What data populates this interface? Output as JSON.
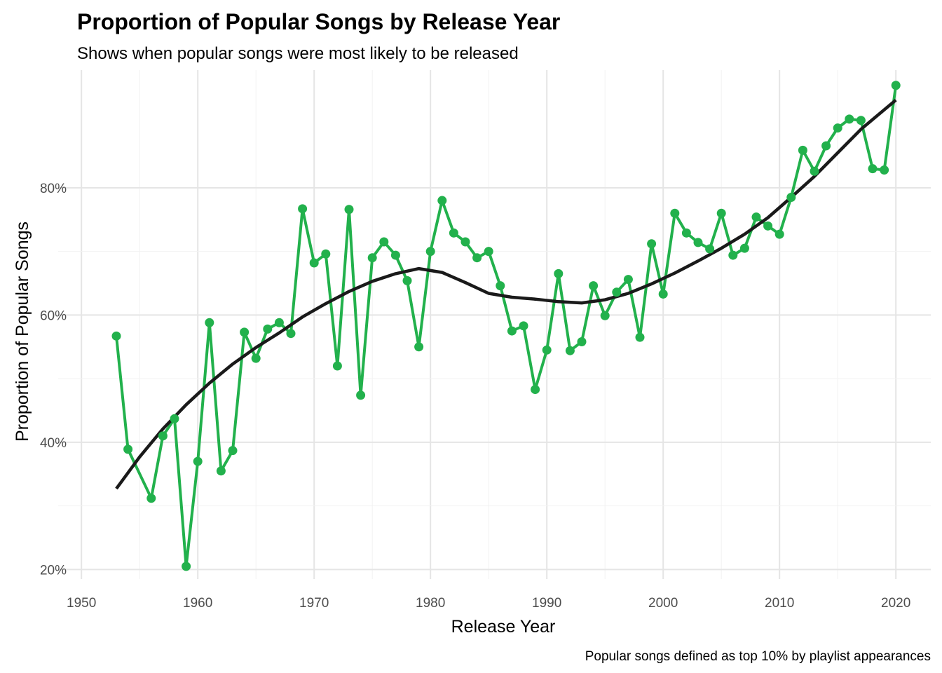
{
  "chart_data": {
    "type": "line",
    "title": "Proportion of Popular Songs by Release Year",
    "subtitle": "Shows when popular songs were most likely to be released",
    "xlabel": "Release Year",
    "ylabel": "Proportion of Popular Songs",
    "caption": "Popular songs defined as top 10% by playlist appearances",
    "xlim": [
      1948,
      2023
    ],
    "ylim": [
      0.185,
      0.985
    ],
    "x_ticks": [
      1950,
      1960,
      1970,
      1980,
      1990,
      2000,
      2010,
      2020
    ],
    "x_tick_labels": [
      "1950",
      "1960",
      "1970",
      "1980",
      "1990",
      "2000",
      "2010",
      "2020"
    ],
    "y_ticks": [
      0.2,
      0.4,
      0.6,
      0.8
    ],
    "y_tick_labels": [
      "20%",
      "40%",
      "60%",
      "80%"
    ],
    "grid": true,
    "legend": "none",
    "colors": {
      "series": "#22b14c",
      "trend": "#1a1a1a",
      "grid": "#e5e5e5"
    },
    "series": [
      {
        "x": [
          1953,
          1954,
          1956,
          1957,
          1958,
          1959,
          1960,
          1961,
          1962,
          1963,
          1964,
          1965,
          1966,
          1967,
          1968,
          1969,
          1970,
          1971,
          1972,
          1973,
          1974,
          1975,
          1976,
          1977,
          1978,
          1979,
          1980,
          1981,
          1982,
          1983,
          1984,
          1985,
          1986,
          1987,
          1988,
          1989,
          1990,
          1991,
          1992,
          1993,
          1994,
          1995,
          1996,
          1997,
          1998,
          1999,
          2000,
          2001,
          2002,
          2003,
          2004,
          2005,
          2006,
          2007,
          2008,
          2009,
          2010,
          2011,
          2012,
          2013,
          2014,
          2015,
          2016,
          2017,
          2018,
          2019,
          2020
        ],
        "values": [
          0.567,
          0.389,
          0.312,
          0.41,
          0.437,
          0.205,
          0.37,
          0.588,
          0.355,
          0.387,
          0.573,
          0.532,
          0.578,
          0.588,
          0.571,
          0.767,
          0.682,
          0.696,
          0.52,
          0.766,
          0.474,
          0.69,
          0.715,
          0.694,
          0.654,
          0.55,
          0.7,
          0.78,
          0.729,
          0.715,
          0.69,
          0.7,
          0.646,
          0.575,
          0.583,
          0.483,
          0.545,
          0.665,
          0.544,
          0.558,
          0.646,
          0.599,
          0.636,
          0.656,
          0.565,
          0.712,
          0.633,
          0.76,
          0.729,
          0.714,
          0.704,
          0.76,
          0.694,
          0.705,
          0.754,
          0.74,
          0.727,
          0.785,
          0.859,
          0.826,
          0.866,
          0.894,
          0.908,
          0.906,
          0.83,
          0.828,
          0.961
        ]
      },
      {
        "x": [
          1953,
          1955,
          1957,
          1959,
          1961,
          1963,
          1965,
          1967,
          1969,
          1971,
          1973,
          1975,
          1977,
          1979,
          1981,
          1983,
          1985,
          1987,
          1989,
          1991,
          1993,
          1995,
          1997,
          1999,
          2001,
          2003,
          2005,
          2007,
          2009,
          2011,
          2013,
          2015,
          2017,
          2020
        ],
        "values": [
          0.327,
          0.377,
          0.421,
          0.459,
          0.493,
          0.523,
          0.549,
          0.572,
          0.597,
          0.618,
          0.637,
          0.653,
          0.665,
          0.673,
          0.667,
          0.651,
          0.634,
          0.628,
          0.625,
          0.621,
          0.619,
          0.624,
          0.634,
          0.649,
          0.666,
          0.685,
          0.705,
          0.727,
          0.753,
          0.785,
          0.818,
          0.855,
          0.892,
          0.938
        ]
      }
    ]
  }
}
